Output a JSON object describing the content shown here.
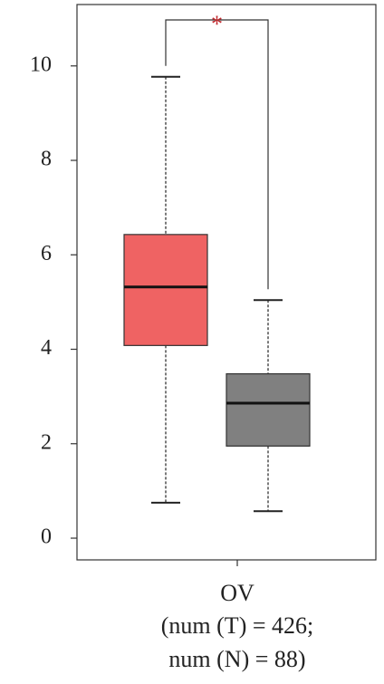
{
  "chart_data": {
    "type": "box",
    "categories": [
      "OV"
    ],
    "category_notes": [
      "(num (T) = 426;",
      "num (N) = 88)"
    ],
    "annotation": "*",
    "series": [
      {
        "color": "#ef6363",
        "min": 0.75,
        "q1": 4.08,
        "median": 5.32,
        "q3": 6.43,
        "max": 9.77
      },
      {
        "color": "#808080",
        "min": 0.57,
        "q1": 1.95,
        "median": 2.86,
        "q3": 3.48,
        "max": 5.04
      }
    ],
    "ylim": [
      -0.46,
      11.3
    ],
    "yticks": [
      0,
      2,
      4,
      6,
      8,
      10
    ]
  }
}
